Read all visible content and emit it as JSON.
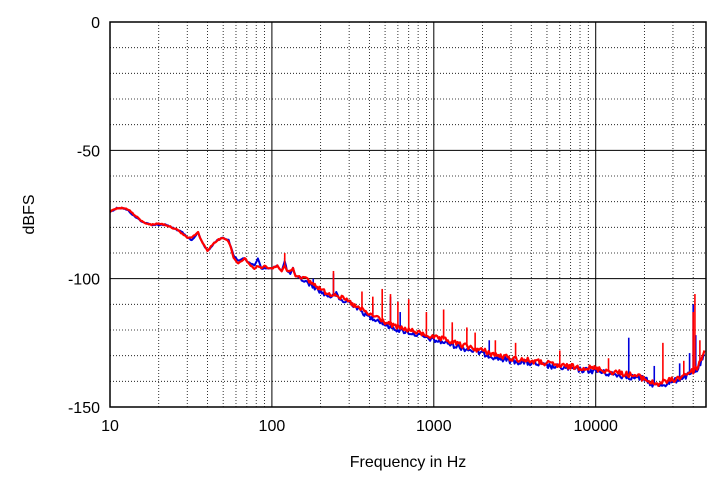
{
  "chart_data": {
    "type": "line",
    "title": "",
    "xlabel": "Frequency in Hz",
    "ylabel": "dBFS",
    "xscale": "log",
    "xlim": [
      10,
      48000
    ],
    "ylim": [
      -150,
      0
    ],
    "grid": true,
    "legend": "none",
    "x_ticks": [
      {
        "value": 10,
        "label": "10"
      },
      {
        "value": 100,
        "label": "100"
      },
      {
        "value": 1000,
        "label": "1000"
      },
      {
        "value": 10000,
        "label": "10000"
      }
    ],
    "y_ticks": [
      {
        "value": 0,
        "label": "0"
      },
      {
        "value": -50,
        "label": "-50"
      },
      {
        "value": -100,
        "label": "-100"
      },
      {
        "value": -150,
        "label": "-150"
      }
    ],
    "series": [
      {
        "color": "#0000dd",
        "points": [
          [
            10,
            -74
          ],
          [
            11,
            -72.5
          ],
          [
            12,
            -72.5
          ],
          [
            13,
            -73.5
          ],
          [
            14,
            -75.5
          ],
          [
            16,
            -78
          ],
          [
            18,
            -79
          ],
          [
            20,
            -79
          ],
          [
            22,
            -79
          ],
          [
            24,
            -80
          ],
          [
            26,
            -81
          ],
          [
            28,
            -82
          ],
          [
            30,
            -84
          ],
          [
            32,
            -85
          ],
          [
            34,
            -83
          ],
          [
            35,
            -82
          ],
          [
            36,
            -84
          ],
          [
            38,
            -87
          ],
          [
            40,
            -89
          ],
          [
            42,
            -88
          ],
          [
            44,
            -86
          ],
          [
            46,
            -85
          ],
          [
            50,
            -84
          ],
          [
            54,
            -85
          ],
          [
            56,
            -88
          ],
          [
            58,
            -91
          ],
          [
            60,
            -92
          ],
          [
            62,
            -93
          ],
          [
            65,
            -92.5
          ],
          [
            68,
            -92
          ],
          [
            70,
            -93
          ],
          [
            74,
            -94
          ],
          [
            78,
            -95
          ],
          [
            82,
            -92
          ],
          [
            86,
            -96
          ],
          [
            90,
            -96
          ],
          [
            95,
            -96
          ],
          [
            100,
            -96
          ],
          [
            108,
            -95
          ],
          [
            115,
            -97
          ],
          [
            120,
            -93
          ],
          [
            124,
            -97
          ],
          [
            130,
            -98
          ],
          [
            135,
            -96
          ],
          [
            140,
            -99
          ],
          [
            150,
            -100
          ],
          [
            170,
            -102
          ],
          [
            190,
            -104
          ],
          [
            210,
            -106
          ],
          [
            230,
            -107
          ],
          [
            250,
            -106
          ],
          [
            260,
            -108
          ],
          [
            280,
            -109
          ],
          [
            300,
            -109
          ],
          [
            330,
            -111
          ],
          [
            360,
            -113
          ],
          [
            400,
            -115
          ],
          [
            450,
            -116
          ],
          [
            500,
            -118
          ],
          [
            600,
            -120
          ],
          [
            700,
            -121
          ],
          [
            800,
            -122
          ],
          [
            900,
            -123
          ],
          [
            1000,
            -124
          ],
          [
            1200,
            -125
          ],
          [
            1500,
            -127
          ],
          [
            2000,
            -129
          ],
          [
            2500,
            -131
          ],
          [
            3000,
            -132
          ],
          [
            4000,
            -133
          ],
          [
            5000,
            -134
          ],
          [
            6000,
            -134.5
          ],
          [
            8000,
            -135.5
          ],
          [
            10000,
            -136
          ],
          [
            12000,
            -137
          ],
          [
            15000,
            -138
          ],
          [
            18000,
            -138.5
          ],
          [
            20000,
            -139
          ],
          [
            22000,
            -141
          ],
          [
            24000,
            -141.5
          ],
          [
            27000,
            -141
          ],
          [
            30000,
            -140
          ],
          [
            33000,
            -139
          ],
          [
            36000,
            -138
          ],
          [
            40000,
            -137
          ],
          [
            43000,
            -135
          ],
          [
            45000,
            -132
          ],
          [
            47000,
            -130
          ]
        ],
        "spikes": [
          [
            120,
            -92
          ],
          [
            180,
            -100
          ],
          [
            240,
            -98
          ],
          [
            420,
            -110
          ],
          [
            540,
            -107
          ],
          [
            620,
            -113
          ],
          [
            1300,
            -119
          ],
          [
            2200,
            -124
          ],
          [
            16000,
            -123
          ],
          [
            23000,
            -134
          ],
          [
            33000,
            -133
          ],
          [
            38000,
            -129
          ],
          [
            40000,
            -110
          ],
          [
            41500,
            -122
          ]
        ]
      },
      {
        "color": "#ff0000",
        "points": [
          [
            10,
            -74
          ],
          [
            11,
            -72.5
          ],
          [
            12,
            -72.5
          ],
          [
            13,
            -73
          ],
          [
            14,
            -75
          ],
          [
            16,
            -78
          ],
          [
            18,
            -79
          ],
          [
            20,
            -78.5
          ],
          [
            22,
            -79
          ],
          [
            24,
            -80
          ],
          [
            26,
            -81
          ],
          [
            28,
            -82.5
          ],
          [
            30,
            -84
          ],
          [
            32,
            -84
          ],
          [
            34,
            -82.5
          ],
          [
            35,
            -82
          ],
          [
            36,
            -84
          ],
          [
            38,
            -87
          ],
          [
            40,
            -89
          ],
          [
            42,
            -87.5
          ],
          [
            44,
            -86
          ],
          [
            46,
            -85
          ],
          [
            50,
            -84
          ],
          [
            54,
            -85.5
          ],
          [
            56,
            -88
          ],
          [
            58,
            -92
          ],
          [
            60,
            -93
          ],
          [
            62,
            -94
          ],
          [
            65,
            -93
          ],
          [
            68,
            -92
          ],
          [
            70,
            -93
          ],
          [
            74,
            -95
          ],
          [
            78,
            -96
          ],
          [
            82,
            -95
          ],
          [
            86,
            -96
          ],
          [
            90,
            -95
          ],
          [
            95,
            -96
          ],
          [
            100,
            -96
          ],
          [
            108,
            -95
          ],
          [
            115,
            -97
          ],
          [
            120,
            -95
          ],
          [
            124,
            -97
          ],
          [
            130,
            -97
          ],
          [
            135,
            -96
          ],
          [
            140,
            -99
          ],
          [
            150,
            -99
          ],
          [
            170,
            -101
          ],
          [
            190,
            -103
          ],
          [
            210,
            -105
          ],
          [
            230,
            -106
          ],
          [
            250,
            -106
          ],
          [
            260,
            -107
          ],
          [
            280,
            -108
          ],
          [
            300,
            -109
          ],
          [
            330,
            -111
          ],
          [
            360,
            -112
          ],
          [
            400,
            -114
          ],
          [
            450,
            -115
          ],
          [
            500,
            -117
          ],
          [
            600,
            -119
          ],
          [
            700,
            -120
          ],
          [
            800,
            -121
          ],
          [
            900,
            -122
          ],
          [
            1000,
            -123
          ],
          [
            1200,
            -124
          ],
          [
            1500,
            -126
          ],
          [
            2000,
            -128
          ],
          [
            2500,
            -130
          ],
          [
            3000,
            -131
          ],
          [
            4000,
            -132
          ],
          [
            5000,
            -133
          ],
          [
            6000,
            -134
          ],
          [
            8000,
            -134.5
          ],
          [
            10000,
            -135
          ],
          [
            12000,
            -136
          ],
          [
            15000,
            -137
          ],
          [
            18000,
            -138
          ],
          [
            20000,
            -139
          ],
          [
            22000,
            -140.5
          ],
          [
            24000,
            -141
          ],
          [
            27000,
            -140
          ],
          [
            30000,
            -139.5
          ],
          [
            33000,
            -138.5
          ],
          [
            36000,
            -137
          ],
          [
            40000,
            -136
          ],
          [
            43000,
            -134
          ],
          [
            45000,
            -131
          ],
          [
            47000,
            -128
          ]
        ],
        "spikes": [
          [
            120,
            -90
          ],
          [
            240,
            -97
          ],
          [
            360,
            -105
          ],
          [
            420,
            -107
          ],
          [
            480,
            -104
          ],
          [
            540,
            -106
          ],
          [
            600,
            -109
          ],
          [
            700,
            -108
          ],
          [
            900,
            -113
          ],
          [
            1150,
            -112
          ],
          [
            1300,
            -117
          ],
          [
            1600,
            -119
          ],
          [
            1800,
            -121
          ],
          [
            2400,
            -124
          ],
          [
            3200,
            -125
          ],
          [
            6000,
            -128
          ],
          [
            12000,
            -131
          ],
          [
            26000,
            -125
          ],
          [
            35000,
            -132
          ],
          [
            40000,
            -113
          ],
          [
            41000,
            -106
          ],
          [
            44000,
            -124
          ]
        ]
      }
    ]
  }
}
